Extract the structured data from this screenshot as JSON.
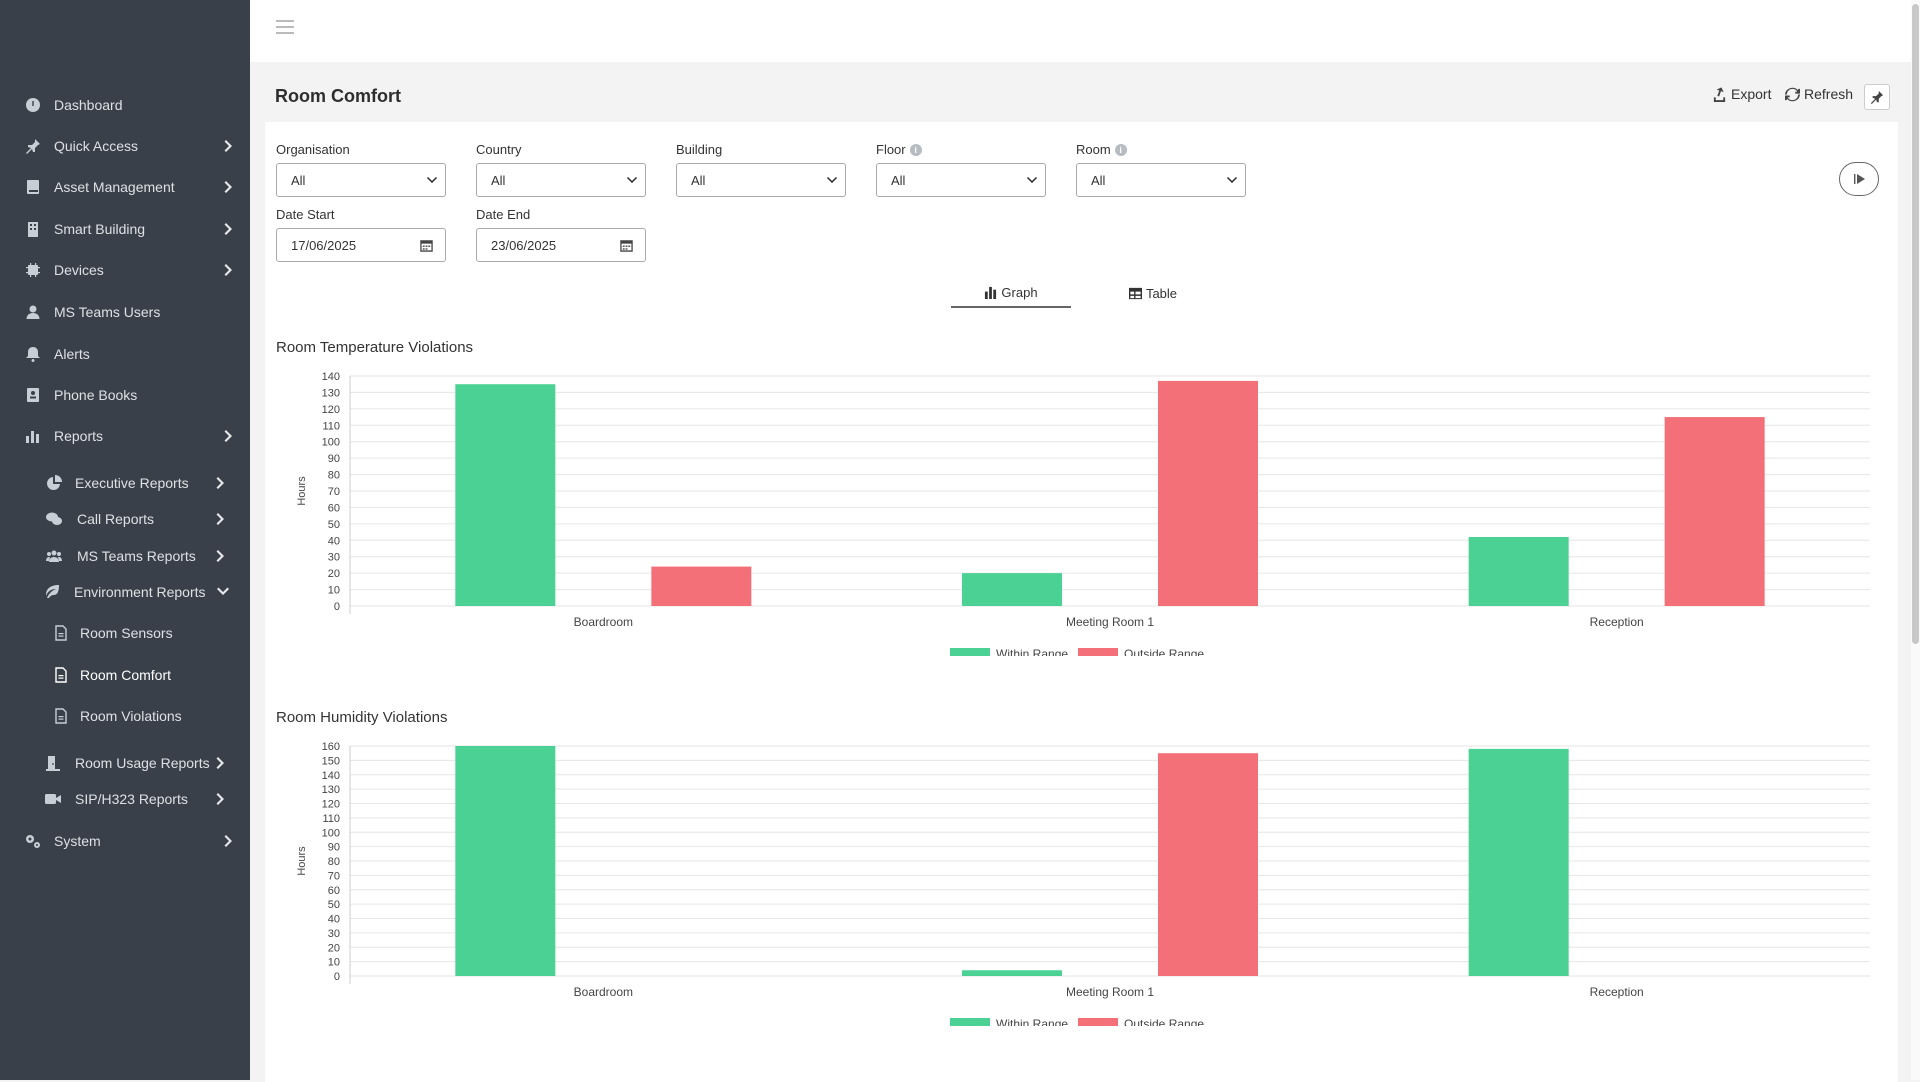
{
  "sidebar": {
    "items": [
      {
        "label": "Dashboard",
        "icon": "dashboard-icon"
      },
      {
        "label": "Quick Access",
        "icon": "pin-icon"
      },
      {
        "label": "Asset Management",
        "icon": "book-icon"
      },
      {
        "label": "Smart Building",
        "icon": "building-icon"
      },
      {
        "label": "Devices",
        "icon": "chip-icon"
      },
      {
        "label": "MS Teams Users",
        "icon": "user-icon"
      },
      {
        "label": "Alerts",
        "icon": "bell-icon"
      },
      {
        "label": "Phone Books",
        "icon": "address-book-icon"
      },
      {
        "label": "Reports",
        "icon": "bar-chart-icon"
      }
    ],
    "report_items": [
      {
        "label": "Executive Reports",
        "icon": "pie-chart-icon"
      },
      {
        "label": "Call Reports",
        "icon": "comments-icon"
      },
      {
        "label": "MS Teams Reports",
        "icon": "users-icon"
      },
      {
        "label": "Environment Reports",
        "icon": "leaf-icon"
      }
    ],
    "env_items": [
      {
        "label": "Room Sensors",
        "icon": "file-icon"
      },
      {
        "label": "Room Comfort",
        "icon": "file-icon"
      },
      {
        "label": "Room Violations",
        "icon": "file-icon"
      }
    ],
    "other_items": [
      {
        "label": "Room Usage Reports",
        "icon": "door-icon"
      },
      {
        "label": "SIP/H323 Reports",
        "icon": "video-icon"
      }
    ],
    "system_label": "System",
    "active_item": "Room Comfort"
  },
  "header": {
    "title": "Room Comfort",
    "export_label": "Export",
    "refresh_label": "Refresh"
  },
  "filters": {
    "organisation": {
      "label": "Organisation",
      "value": "All"
    },
    "country": {
      "label": "Country",
      "value": "All"
    },
    "building": {
      "label": "Building",
      "value": "All"
    },
    "floor": {
      "label": "Floor",
      "value": "All"
    },
    "room": {
      "label": "Room",
      "value": "All"
    },
    "date_start": {
      "label": "Date Start",
      "value": "17/06/2025"
    },
    "date_end": {
      "label": "Date End",
      "value": "23/06/2025"
    }
  },
  "tabs": {
    "graph": "Graph",
    "table": "Table"
  },
  "colors": {
    "within": "#4bd193",
    "outside": "#f47078"
  },
  "chart_data": [
    {
      "type": "bar",
      "title": "Room Temperature Violations",
      "ylabel": "Hours",
      "ylim": [
        0,
        140
      ],
      "ytick_step": 10,
      "categories": [
        "Boardroom",
        "Meeting Room 1",
        "Reception"
      ],
      "series": [
        {
          "name": "Within Range",
          "values": [
            135,
            20,
            42
          ]
        },
        {
          "name": "Outside Range",
          "values": [
            24,
            137,
            115
          ]
        }
      ],
      "legend": "bottom-center"
    },
    {
      "type": "bar",
      "title": "Room Humidity Violations",
      "ylabel": "Hours",
      "ylim": [
        0,
        160
      ],
      "ytick_step": 10,
      "categories": [
        "Boardroom",
        "Meeting Room 1",
        "Reception"
      ],
      "series": [
        {
          "name": "Within Range",
          "values": [
            160,
            4,
            158
          ]
        },
        {
          "name": "Outside Range",
          "values": [
            0,
            155,
            0
          ]
        }
      ],
      "legend": "bottom-center"
    }
  ]
}
